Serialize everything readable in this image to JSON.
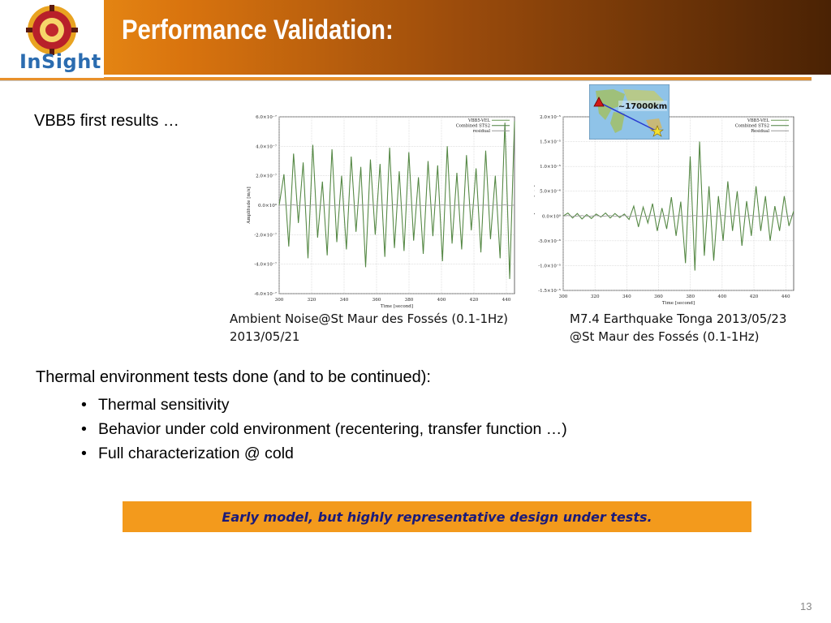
{
  "header": {
    "title": "Performance Validation:",
    "logo_text": "InSight"
  },
  "subtitle": "VBB5 first results …",
  "captions": {
    "left": [
      "Ambient Noise@St Maur des Fossés (0.1-1Hz)",
      "2013/05/21"
    ],
    "right": [
      "M7.4 Earthquake Tonga 2013/05/23",
      "@St Maur des Fossés (0.1-1Hz)"
    ]
  },
  "map": {
    "distance_label": "~17000km"
  },
  "thermal": {
    "heading": "Thermal environment tests done (and to be continued):",
    "bullets": [
      "Thermal sensitivity",
      "Behavior under cold environment (recentering, transfer function …)",
      "Full characterization @ cold"
    ]
  },
  "banner": {
    "text": "Early model, but highly representative design under tests."
  },
  "page_number": "13",
  "colors": {
    "trace": "#6a9a55",
    "residual": "#9a9a9a",
    "accent": "#f39a1c"
  },
  "chart_data": [
    {
      "type": "line",
      "xlabel": "Time [second]",
      "ylabel": "Amplitude [m/s]",
      "xlim": [
        300,
        445
      ],
      "ylim": [
        -6e-07,
        6e-07
      ],
      "x_ticks": [
        "300",
        "320",
        "340",
        "360",
        "380",
        "400",
        "420",
        "440"
      ],
      "y_ticks": [
        "6.0×10⁻⁷",
        "4.0×10⁻⁷",
        "2.0×10⁻⁷",
        "0.0×10⁰",
        "-2.0×10⁻⁷",
        "-4.0×10⁻⁷",
        "-6.0×10⁻⁷"
      ],
      "y_tick_values": [
        6e-07,
        4e-07,
        2e-07,
        0,
        -2e-07,
        -4e-07,
        -6e-07
      ],
      "grid": true,
      "legend_position": "top-right",
      "series": [
        {
          "name": "VBB5-VEL",
          "values": [
            0,
            2.1e-07,
            -2.8e-07,
            3.5e-07,
            -1.2e-07,
            2.9e-07,
            -3.6e-07,
            4.1e-07,
            -2.2e-07,
            1.6e-07,
            -3.4e-07,
            3.8e-07,
            -2.5e-07,
            2e-07,
            -3e-07,
            3.3e-07,
            -1.8e-07,
            2.6e-07,
            -4.2e-07,
            3.1e-07,
            -2e-07,
            2.8e-07,
            -3.5e-07,
            3.9e-07,
            -2.9e-07,
            2.3e-07,
            -3.1e-07,
            3.6e-07,
            -2.4e-07,
            1.9e-07,
            -3.3e-07,
            3e-07,
            -2.1e-07,
            2.7e-07,
            -3.8e-07,
            4e-07,
            -2.6e-07,
            2.2e-07,
            -3e-07,
            3.4e-07,
            -1.7e-07,
            2.5e-07,
            -3.2e-07,
            3.7e-07,
            -2.3e-07,
            2e-07,
            -3.6e-07,
            5.6e-07,
            -5e-07,
            5.7e-07
          ]
        },
        {
          "name": "Combined STS2",
          "values": [
            0,
            2.1e-07,
            -2.8e-07,
            3.5e-07,
            -1.2e-07,
            2.9e-07,
            -3.6e-07,
            4.1e-07,
            -2.2e-07,
            1.6e-07,
            -3.4e-07,
            3.8e-07,
            -2.5e-07,
            2e-07,
            -3e-07,
            3.3e-07,
            -1.8e-07,
            2.6e-07,
            -4.2e-07,
            3.1e-07,
            -2e-07,
            2.8e-07,
            -3.5e-07,
            3.9e-07,
            -2.9e-07,
            2.3e-07,
            -3.1e-07,
            3.6e-07,
            -2.4e-07,
            1.9e-07,
            -3.3e-07,
            3e-07,
            -2.1e-07,
            2.7e-07,
            -3.8e-07,
            4e-07,
            -2.6e-07,
            2.2e-07,
            -3e-07,
            3.4e-07,
            -1.7e-07,
            2.5e-07,
            -3.2e-07,
            3.7e-07,
            -2.3e-07,
            2e-07,
            -3.6e-07,
            5.6e-07,
            -5e-07,
            5.7e-07
          ]
        },
        {
          "name": "residual",
          "values": [
            0,
            2e-09,
            -1e-09,
            3e-09,
            -2e-09,
            1e-09,
            -3e-09,
            2e-09,
            0,
            -1e-09,
            2e-09,
            -2e-09,
            1e-09,
            0,
            -1e-09,
            2e-09,
            -3e-09,
            1e-09,
            0,
            2e-09,
            -1e-09,
            0,
            1e-09,
            -2e-09,
            3e-09,
            -1e-09,
            0,
            2e-09,
            -1e-09,
            1e-09,
            -2e-09,
            0,
            1e-09,
            -1e-09,
            2e-09,
            0,
            -2e-09,
            1e-09,
            0,
            -1e-09,
            2e-09,
            -1e-09,
            0,
            1e-09,
            -2e-09,
            2e-09,
            -1e-09,
            3e-09,
            -2e-09,
            1e-09
          ]
        }
      ]
    },
    {
      "type": "line",
      "xlabel": "Time [second]",
      "ylabel": "Amplitude [m/s]",
      "xlim": [
        300,
        445
      ],
      "ylim": [
        -1.5e-05,
        2e-05
      ],
      "x_ticks": [
        "300",
        "320",
        "340",
        "360",
        "380",
        "400",
        "420",
        "440"
      ],
      "y_ticks": [
        "2.0×10⁻⁵",
        "1.5×10⁻⁵",
        "1.0×10⁻⁵",
        "5.0×10⁻⁶",
        "0.0×10⁰",
        "-5.0×10⁻⁶",
        "-1.0×10⁻⁵",
        "-1.5×10⁻⁵"
      ],
      "y_tick_values": [
        2e-05,
        1.5e-05,
        1e-05,
        5e-06,
        0,
        -5e-06,
        -1e-05,
        -1.5e-05
      ],
      "grid": true,
      "legend_position": "top-right",
      "series": [
        {
          "name": "VBB5-VEL",
          "values": [
            0,
            6e-07,
            -4e-07,
            5e-07,
            -6e-07,
            3e-07,
            -5e-07,
            4e-07,
            -2e-07,
            6e-07,
            -4e-07,
            5e-07,
            -3e-07,
            4e-07,
            -7e-07,
            2e-06,
            -2.2e-06,
            1.8e-06,
            -1.4e-06,
            2.5e-06,
            -3e-06,
            1.6e-06,
            -2.6e-06,
            3.8e-06,
            -4e-06,
            2.9e-06,
            -9.5e-06,
            1.2e-05,
            -1.1e-05,
            1.5e-05,
            -8e-06,
            6e-06,
            -9e-06,
            4e-06,
            -5e-06,
            7e-06,
            -3e-06,
            5e-06,
            -6e-06,
            3e-06,
            -4e-06,
            6e-06,
            -3e-06,
            4e-06,
            -5e-06,
            2e-06,
            -3e-06,
            4e-06,
            -2e-06,
            1e-06
          ]
        },
        {
          "name": "Combined STS2",
          "values": [
            0,
            6e-07,
            -4e-07,
            5e-07,
            -6e-07,
            3e-07,
            -5e-07,
            4e-07,
            -2e-07,
            6e-07,
            -4e-07,
            5e-07,
            -3e-07,
            4e-07,
            -7e-07,
            2e-06,
            -2.2e-06,
            1.8e-06,
            -1.4e-06,
            2.5e-06,
            -3e-06,
            1.6e-06,
            -2.6e-06,
            3.8e-06,
            -4e-06,
            2.9e-06,
            -9.5e-06,
            1.2e-05,
            -1.1e-05,
            1.5e-05,
            -8e-06,
            6e-06,
            -9e-06,
            4e-06,
            -5e-06,
            7e-06,
            -3e-06,
            5e-06,
            -6e-06,
            3e-06,
            -4e-06,
            6e-06,
            -3e-06,
            4e-06,
            -5e-06,
            2e-06,
            -3e-06,
            4e-06,
            -2e-06,
            1e-06
          ]
        },
        {
          "name": "Residual",
          "values": [
            0,
            1e-07,
            -1e-07,
            0,
            1e-07,
            -1e-07,
            0,
            1e-07,
            -1e-07,
            0,
            1e-07,
            -1e-07,
            0,
            1e-07,
            -1e-07,
            0,
            1e-07,
            -1e-07,
            0,
            1e-07,
            -1e-07,
            0,
            1e-07,
            -1e-07,
            0,
            1e-07,
            -1e-07,
            0,
            1e-07,
            -1e-07,
            0,
            1e-07,
            -1e-07,
            0,
            1e-07,
            -1e-07,
            0,
            1e-07,
            -1e-07,
            0,
            1e-07,
            -1e-07,
            0,
            1e-07,
            -1e-07,
            0,
            1e-07,
            -1e-07,
            0,
            1e-07
          ]
        }
      ]
    }
  ]
}
